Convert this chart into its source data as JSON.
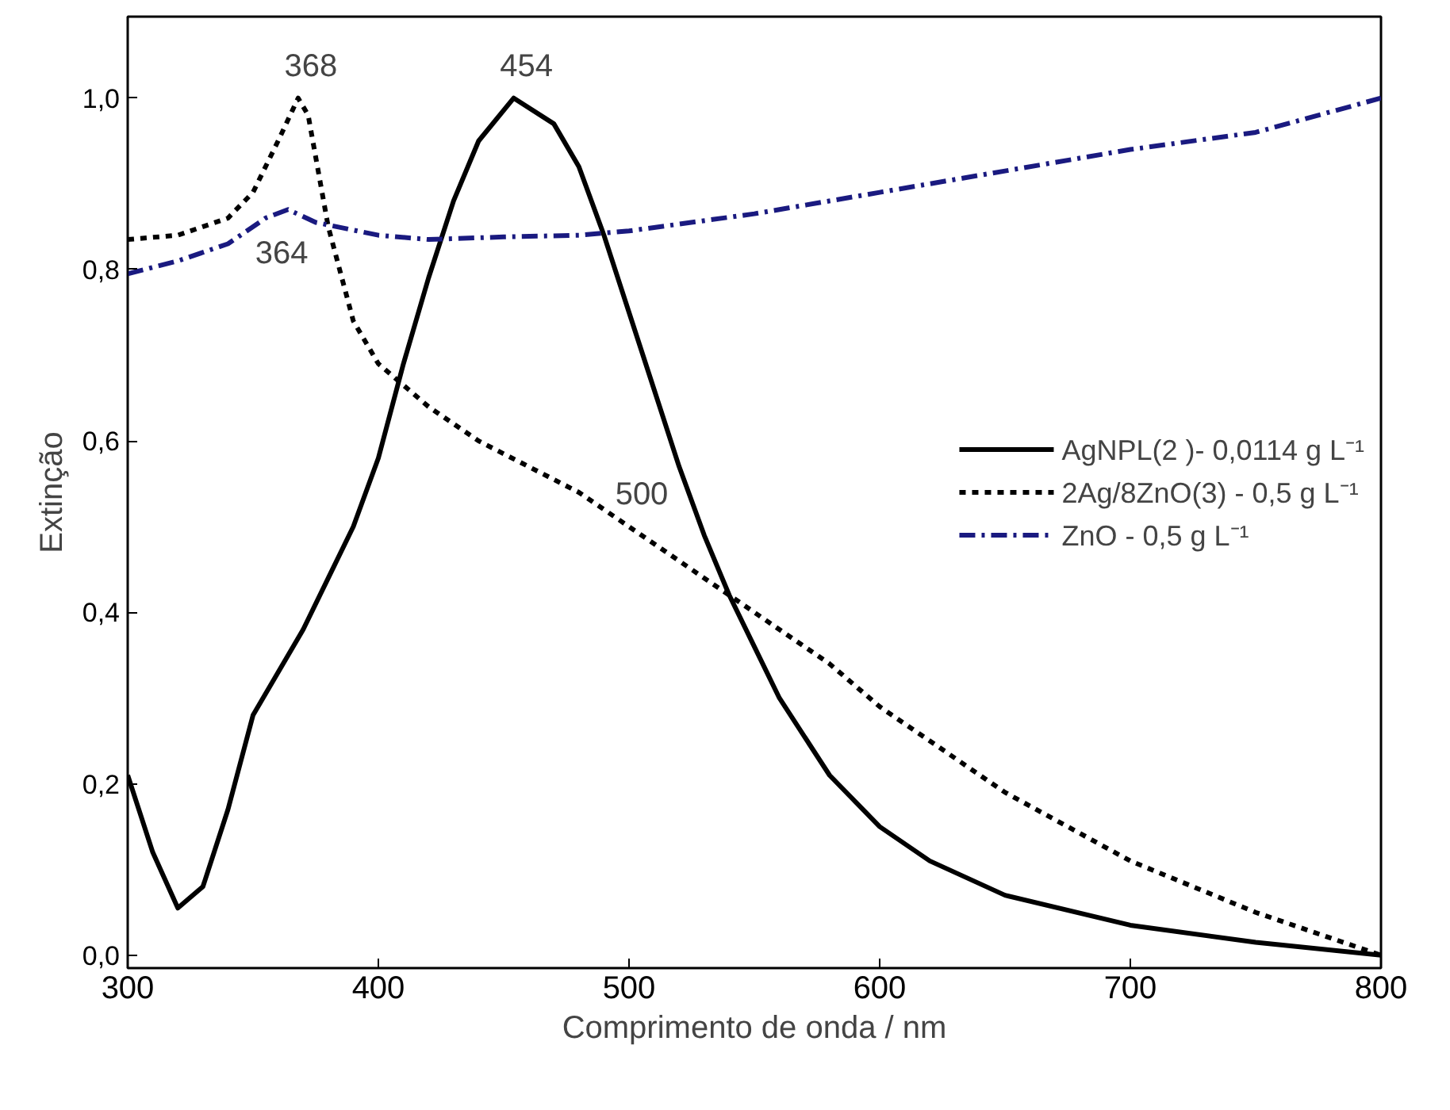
{
  "chart_data": {
    "type": "line",
    "xlabel": "Comprimento de onda / nm",
    "ylabel": "Extinção",
    "xlim": [
      300,
      800
    ],
    "ylim": [
      -0.015,
      1.095
    ],
    "xticks": [
      300,
      400,
      500,
      600,
      700,
      800
    ],
    "yticks": [
      {
        "value": 0,
        "label": "0,0"
      },
      {
        "value": 0.2,
        "label": "0,2"
      },
      {
        "value": 0.4,
        "label": "0,4"
      },
      {
        "value": 0.6,
        "label": "0,6"
      },
      {
        "value": 0.8,
        "label": "0,8"
      },
      {
        "value": 1.0,
        "label": "1,0"
      }
    ],
    "legend": "right",
    "grid": false,
    "series": [
      {
        "name": "AgNPL(2 )- 0,0114 g L⁻¹",
        "color": "#000000",
        "line_style": "solid",
        "x": [
          300,
          310,
          320,
          330,
          340,
          350,
          360,
          370,
          380,
          390,
          400,
          410,
          420,
          430,
          440,
          454,
          470,
          480,
          490,
          500,
          510,
          520,
          530,
          540,
          550,
          560,
          580,
          600,
          620,
          650,
          700,
          750,
          800
        ],
        "values": [
          0.21,
          0.12,
          0.055,
          0.08,
          0.17,
          0.28,
          0.33,
          0.38,
          0.44,
          0.5,
          0.58,
          0.69,
          0.79,
          0.88,
          0.95,
          1.0,
          0.97,
          0.92,
          0.84,
          0.75,
          0.66,
          0.57,
          0.49,
          0.42,
          0.36,
          0.3,
          0.21,
          0.15,
          0.11,
          0.07,
          0.035,
          0.015,
          0.0
        ]
      },
      {
        "name": "2Ag/8ZnO(3) - 0,5 g L⁻¹",
        "color": "#000000",
        "line_style": "dotted",
        "x": [
          300,
          320,
          340,
          350,
          360,
          368,
          372,
          380,
          390,
          400,
          420,
          440,
          460,
          480,
          500,
          520,
          540,
          560,
          580,
          600,
          620,
          650,
          700,
          750,
          800
        ],
        "values": [
          0.835,
          0.84,
          0.86,
          0.89,
          0.95,
          1.0,
          0.98,
          0.85,
          0.74,
          0.69,
          0.64,
          0.6,
          0.57,
          0.54,
          0.5,
          0.46,
          0.42,
          0.38,
          0.34,
          0.29,
          0.25,
          0.19,
          0.11,
          0.05,
          0.0
        ]
      },
      {
        "name": "ZnO - 0,5 g L⁻¹",
        "color": "#1a1a80",
        "line_style": "dashdot",
        "x": [
          300,
          320,
          340,
          355,
          364,
          375,
          400,
          420,
          450,
          480,
          500,
          550,
          600,
          650,
          700,
          750,
          800
        ],
        "values": [
          0.795,
          0.81,
          0.83,
          0.86,
          0.87,
          0.855,
          0.84,
          0.835,
          0.838,
          0.84,
          0.845,
          0.865,
          0.89,
          0.915,
          0.94,
          0.96,
          1.0
        ]
      }
    ],
    "annotations": [
      {
        "text": "368",
        "x": 368,
        "y": 1.0
      },
      {
        "text": "454",
        "x": 454,
        "y": 1.0
      },
      {
        "text": "364",
        "x": 364,
        "y": 0.87
      },
      {
        "text": "500",
        "x": 500,
        "y": 0.5
      }
    ]
  }
}
